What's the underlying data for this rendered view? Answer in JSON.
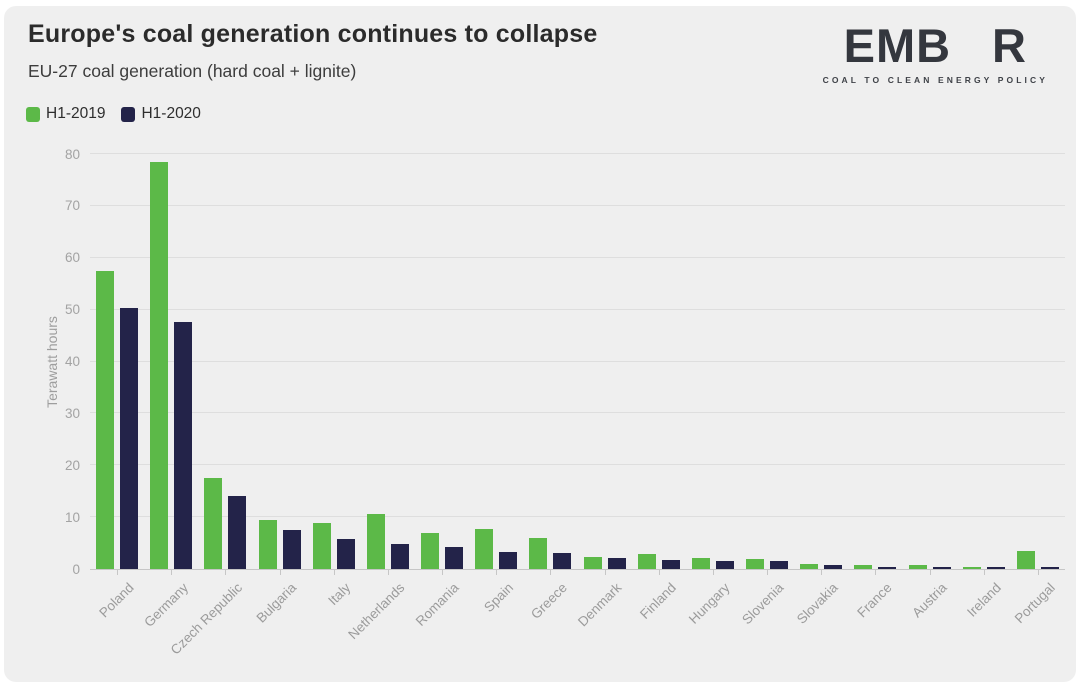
{
  "header": {
    "title": "Europe's coal generation continues to collapse",
    "subtitle": "EU-27 coal generation (hard coal + lignite)"
  },
  "logo": {
    "text_left": "EMB",
    "text_right": "R",
    "tagline": "COAL TO CLEAN ENERGY POLICY"
  },
  "legend": [
    {
      "label": "H1-2019",
      "color": "#5CB948"
    },
    {
      "label": "H1-2020",
      "color": "#232349"
    }
  ],
  "colors": {
    "green": "#5CB948",
    "navy": "#232349",
    "panel_background": "#EFEFEF",
    "grid_line": "#DEDEDE",
    "axis_line": "#C6C6C6",
    "axis_text": "#A3A3A3",
    "logo_dark": "#34373E"
  },
  "chart_data": {
    "type": "bar",
    "title": "Europe's coal generation continues to collapse",
    "subtitle": "EU-27 coal generation (hard coal + lignite)",
    "xlabel": "",
    "ylabel": "Terawatt hours",
    "ylim": [
      0,
      80
    ],
    "yticks": [
      0,
      10,
      20,
      30,
      40,
      50,
      60,
      70,
      80
    ],
    "grid": true,
    "legend_position": "top-left",
    "categories": [
      "Poland",
      "Germany",
      "Czech Republic",
      "Bulgaria",
      "Italy",
      "Netherlands",
      "Romania",
      "Spain",
      "Greece",
      "Denmark",
      "Finland",
      "Hungary",
      "Slovenia",
      "Slovakia",
      "France",
      "Austria",
      "Ireland",
      "Portugal"
    ],
    "series": [
      {
        "name": "H1-2019",
        "color": "#5CB948",
        "values": [
          57.4,
          78.5,
          17.5,
          9.5,
          8.8,
          10.7,
          6.9,
          7.8,
          5.9,
          2.4,
          2.9,
          2.1,
          1.9,
          0.9,
          0.8,
          0.8,
          0.4,
          3.5
        ]
      },
      {
        "name": "H1-2020",
        "color": "#232349",
        "values": [
          50.4,
          47.6,
          14.0,
          7.5,
          5.7,
          4.9,
          4.2,
          3.3,
          3.1,
          2.2,
          1.8,
          1.6,
          1.5,
          0.7,
          0.4,
          0.2,
          0.1,
          0.2
        ]
      }
    ]
  }
}
